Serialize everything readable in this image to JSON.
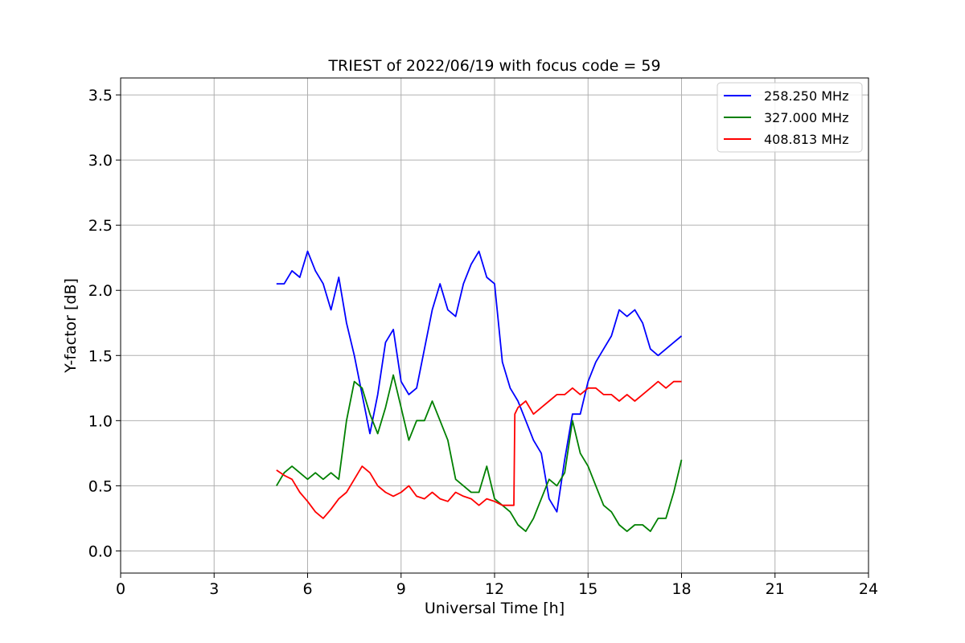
{
  "chart_data": {
    "type": "line",
    "title": "TRIEST of 2022/06/19 with focus code = 59",
    "xlabel": "Universal Time [h]",
    "ylabel": "Y-factor [dB]",
    "xlim": [
      0,
      24
    ],
    "ylim": [
      -0.17,
      3.63
    ],
    "xticks": [
      0,
      3,
      6,
      9,
      12,
      15,
      18,
      21,
      24
    ],
    "yticks": [
      0.0,
      0.5,
      1.0,
      1.5,
      2.0,
      2.5,
      3.0,
      3.5
    ],
    "grid": true,
    "legend_position": "top-right",
    "series": [
      {
        "name": "258.250 MHz",
        "color": "#0000ff",
        "x": [
          5.0,
          5.25,
          5.5,
          5.75,
          6.0,
          6.25,
          6.5,
          6.75,
          7.0,
          7.25,
          7.5,
          7.75,
          8.0,
          8.25,
          8.5,
          8.75,
          9.0,
          9.25,
          9.5,
          9.75,
          10.0,
          10.25,
          10.5,
          10.75,
          11.0,
          11.25,
          11.5,
          11.75,
          12.0,
          12.25,
          12.5,
          12.75,
          13.0,
          13.25,
          13.5,
          13.75,
          14.0,
          14.25,
          14.5,
          14.75,
          15.0,
          15.25,
          15.5,
          15.75,
          16.0,
          16.25,
          16.5,
          16.75,
          17.0,
          17.25,
          17.5,
          17.75,
          18.0
        ],
        "y": [
          2.05,
          2.05,
          2.15,
          2.1,
          2.3,
          2.15,
          2.05,
          1.85,
          2.1,
          1.75,
          1.5,
          1.2,
          0.9,
          1.2,
          1.6,
          1.7,
          1.3,
          1.2,
          1.25,
          1.55,
          1.85,
          2.05,
          1.85,
          1.8,
          2.05,
          2.2,
          2.3,
          2.1,
          2.05,
          1.45,
          1.25,
          1.15,
          1.0,
          0.85,
          0.75,
          0.4,
          0.3,
          0.7,
          1.05,
          1.05,
          1.3,
          1.45,
          1.55,
          1.65,
          1.85,
          1.8,
          1.85,
          1.75,
          1.55,
          1.5,
          1.55,
          1.6,
          1.65
        ]
      },
      {
        "name": "327.000 MHz",
        "color": "#008000",
        "x": [
          5.0,
          5.25,
          5.5,
          5.75,
          6.0,
          6.25,
          6.5,
          6.75,
          7.0,
          7.25,
          7.5,
          7.75,
          8.0,
          8.25,
          8.5,
          8.75,
          9.0,
          9.25,
          9.5,
          9.75,
          10.0,
          10.25,
          10.5,
          10.75,
          11.0,
          11.25,
          11.5,
          11.75,
          12.0,
          12.25,
          12.5,
          12.75,
          13.0,
          13.25,
          13.5,
          13.75,
          14.0,
          14.25,
          14.5,
          14.75,
          15.0,
          15.25,
          15.5,
          15.75,
          16.0,
          16.25,
          16.5,
          16.75,
          17.0,
          17.25,
          17.5,
          17.75,
          18.0
        ],
        "y": [
          0.5,
          0.6,
          0.65,
          0.6,
          0.55,
          0.6,
          0.55,
          0.6,
          0.55,
          1.0,
          1.3,
          1.25,
          1.05,
          0.9,
          1.1,
          1.35,
          1.1,
          0.85,
          1.0,
          1.0,
          1.15,
          1.0,
          0.85,
          0.55,
          0.5,
          0.45,
          0.45,
          0.65,
          0.4,
          0.35,
          0.3,
          0.2,
          0.15,
          0.25,
          0.4,
          0.55,
          0.5,
          0.6,
          1.0,
          0.75,
          0.65,
          0.5,
          0.35,
          0.3,
          0.2,
          0.15,
          0.2,
          0.2,
          0.15,
          0.25,
          0.25,
          0.45,
          0.7
        ]
      },
      {
        "name": "408.813 MHz",
        "color": "#ff0000",
        "x": [
          5.0,
          5.25,
          5.5,
          5.75,
          6.0,
          6.25,
          6.5,
          6.75,
          7.0,
          7.25,
          7.5,
          7.75,
          8.0,
          8.25,
          8.5,
          8.75,
          9.0,
          9.25,
          9.5,
          9.75,
          10.0,
          10.25,
          10.5,
          10.75,
          11.0,
          11.25,
          11.5,
          11.75,
          12.0,
          12.25,
          12.5,
          12.62,
          12.65,
          12.75,
          13.0,
          13.25,
          13.5,
          13.75,
          14.0,
          14.25,
          14.5,
          14.75,
          15.0,
          15.25,
          15.5,
          15.75,
          16.0,
          16.25,
          16.5,
          16.75,
          17.0,
          17.25,
          17.5,
          17.75,
          18.0
        ],
        "y": [
          0.62,
          0.58,
          0.55,
          0.45,
          0.38,
          0.3,
          0.25,
          0.32,
          0.4,
          0.45,
          0.55,
          0.65,
          0.6,
          0.5,
          0.45,
          0.42,
          0.45,
          0.5,
          0.42,
          0.4,
          0.45,
          0.4,
          0.38,
          0.45,
          0.42,
          0.4,
          0.35,
          0.4,
          0.38,
          0.35,
          0.35,
          0.35,
          1.05,
          1.1,
          1.15,
          1.05,
          1.1,
          1.15,
          1.2,
          1.2,
          1.25,
          1.2,
          1.25,
          1.25,
          1.2,
          1.2,
          1.15,
          1.2,
          1.15,
          1.2,
          1.25,
          1.3,
          1.25,
          1.3,
          1.3
        ]
      }
    ]
  }
}
